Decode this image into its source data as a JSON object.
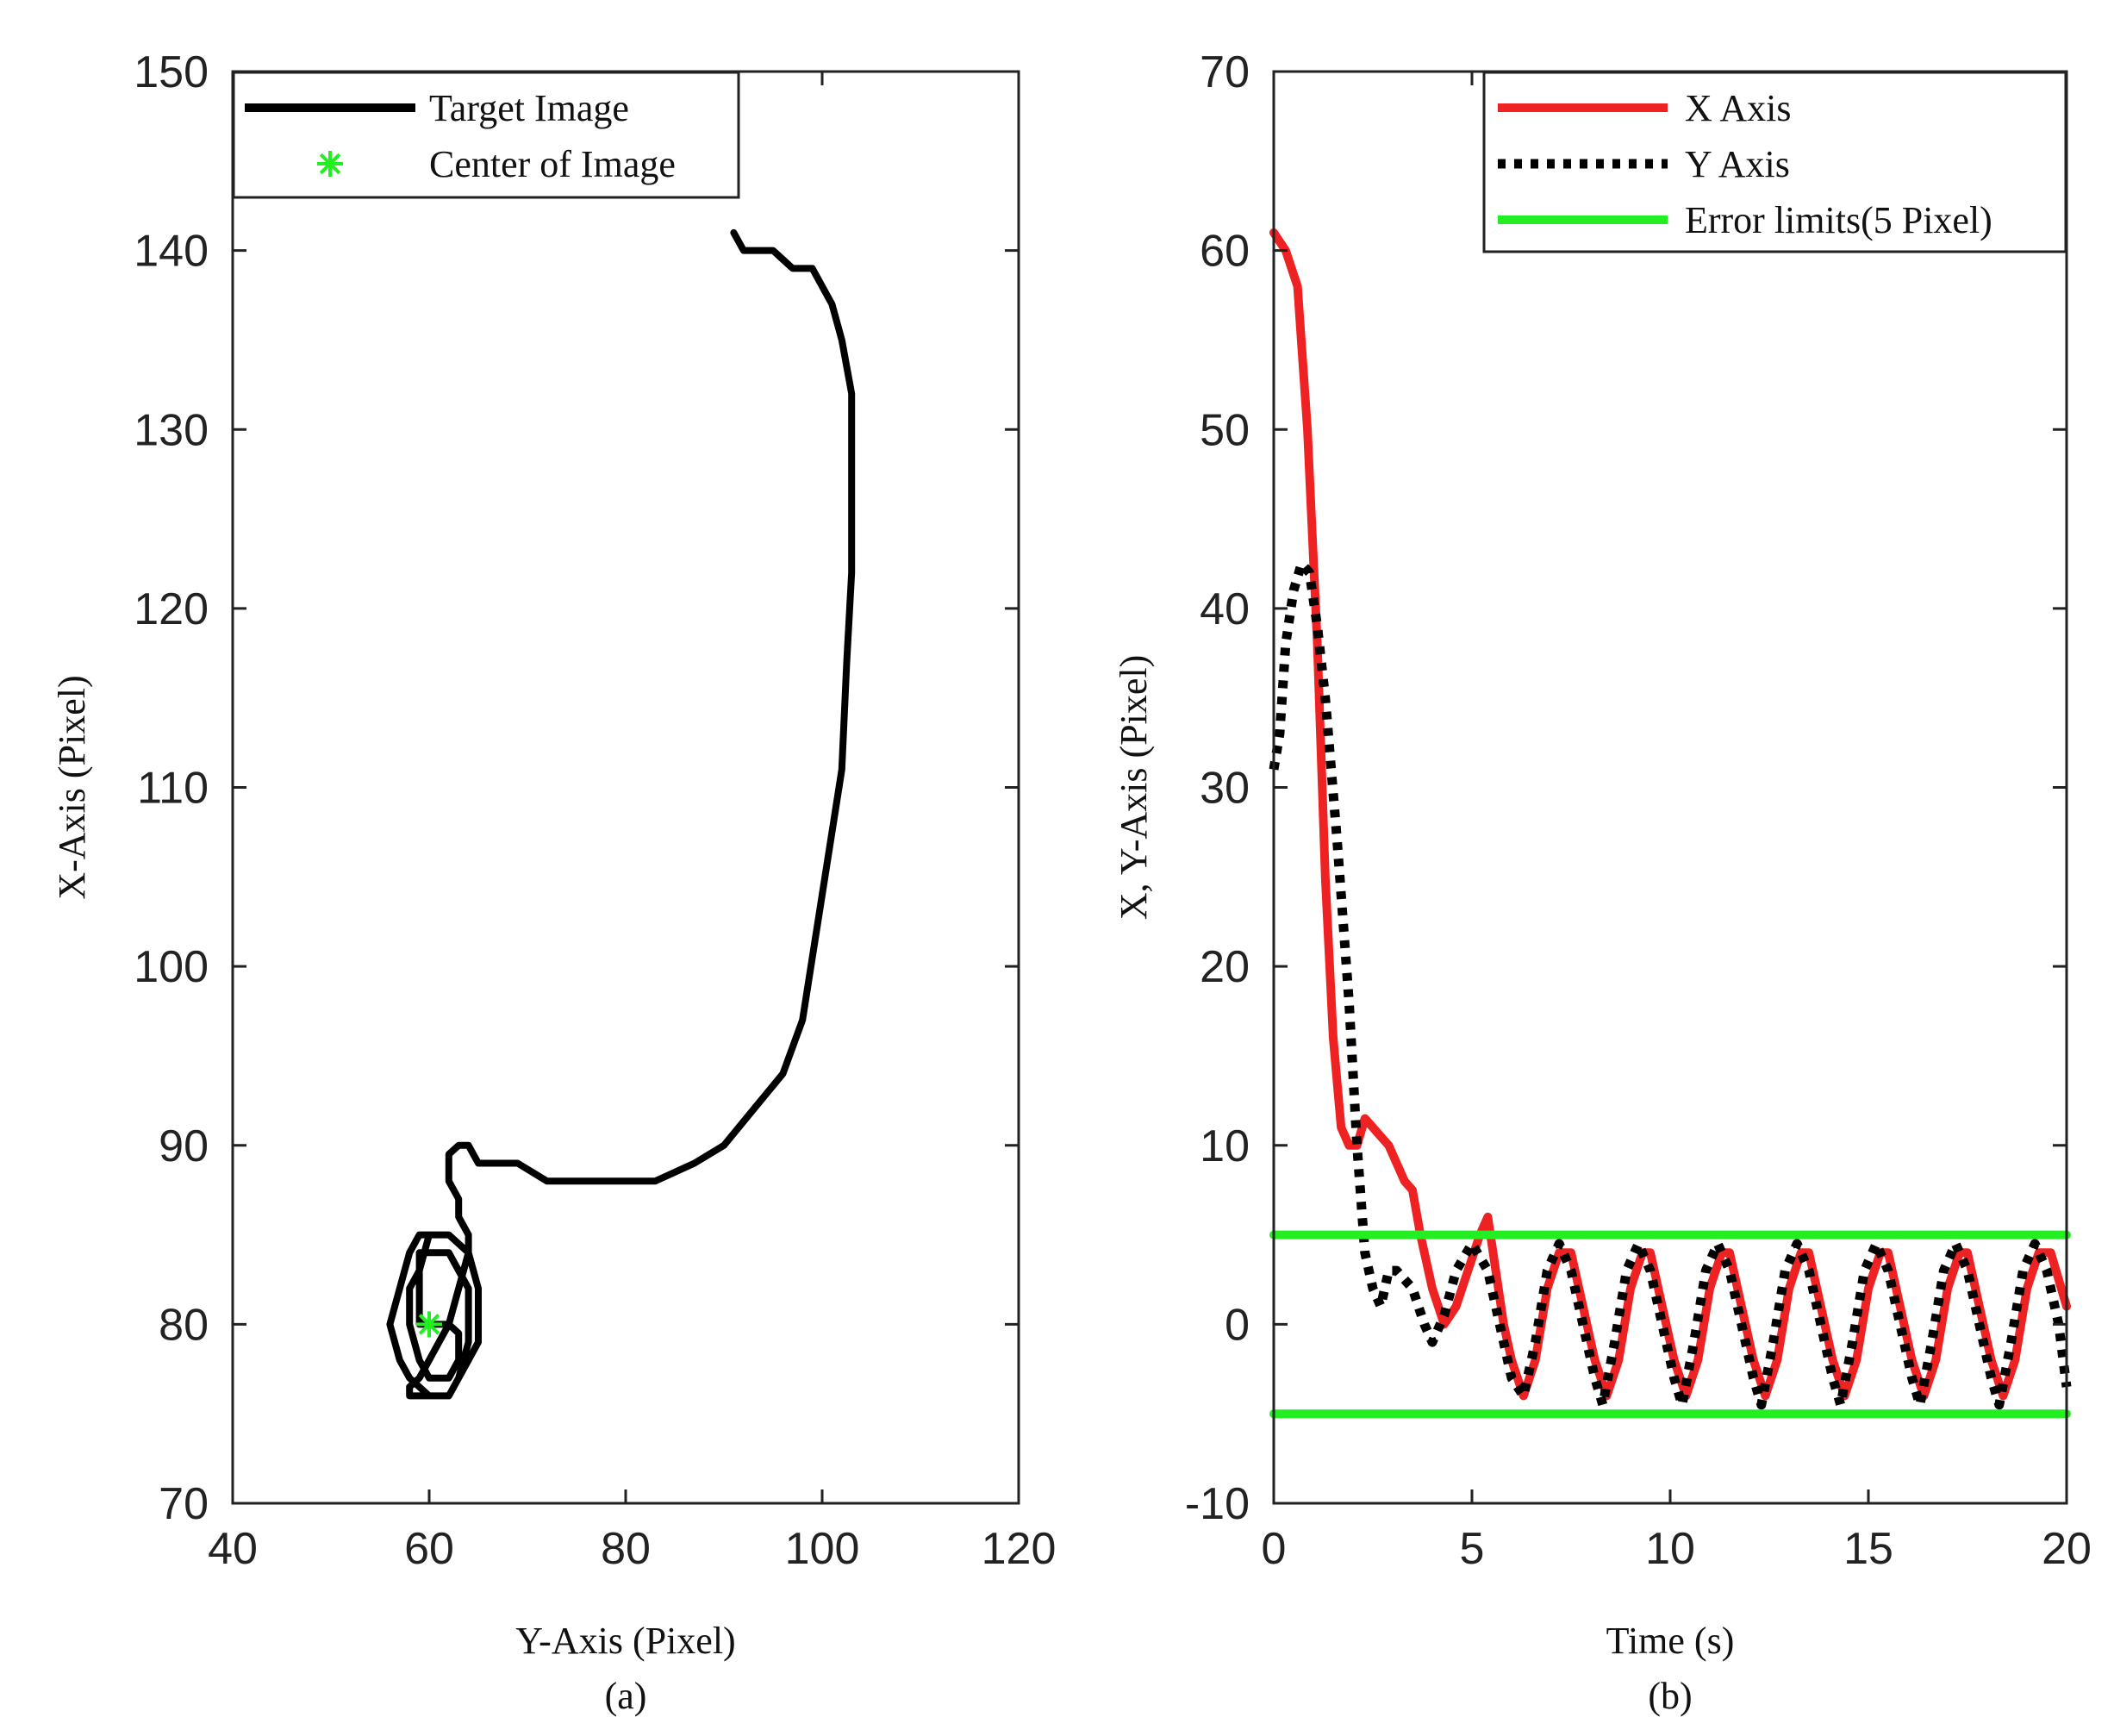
{
  "chart_data": [
    {
      "type": "line",
      "caption": "(a)",
      "xlabel": "Y-Axis (Pixel)",
      "ylabel": "X-Axis (Pixel)",
      "xlim": [
        40,
        120
      ],
      "ylim": [
        70,
        150
      ],
      "xticks": [
        40,
        60,
        80,
        100,
        120
      ],
      "yticks": [
        70,
        80,
        90,
        100,
        110,
        120,
        130,
        140,
        150
      ],
      "grid": false,
      "legend_position": "top-left",
      "series": [
        {
          "name": "Target Image",
          "color": "#000000",
          "style": "solid",
          "points": [
            [
              91,
              141
            ],
            [
              92,
              140
            ],
            [
              95,
              140
            ],
            [
              96,
              139.5
            ],
            [
              97,
              139
            ],
            [
              99,
              139
            ],
            [
              101,
              137
            ],
            [
              102,
              135
            ],
            [
              103,
              132
            ],
            [
              103,
              127
            ],
            [
              103,
              122
            ],
            [
              102.5,
              117
            ],
            [
              102,
              111
            ],
            [
              100,
              104
            ],
            [
              98,
              97
            ],
            [
              96,
              94
            ],
            [
              93,
              92
            ],
            [
              90,
              90
            ],
            [
              87,
              89
            ],
            [
              83,
              88
            ],
            [
              78,
              88
            ],
            [
              72,
              88
            ],
            [
              69,
              89
            ],
            [
              65,
              89
            ],
            [
              64,
              90
            ],
            [
              63,
              90
            ],
            [
              62,
              89.5
            ],
            [
              62,
              88.5
            ],
            [
              62,
              88
            ],
            [
              63,
              87
            ],
            [
              63,
              86.5
            ],
            [
              63,
              86
            ],
            [
              64,
              85
            ],
            [
              64,
              84
            ],
            [
              63,
              82
            ],
            [
              62,
              80
            ],
            [
              61,
              79
            ],
            [
              60,
              78
            ],
            [
              59,
              77
            ],
            [
              58,
              76.5
            ],
            [
              58,
              76
            ],
            [
              60,
              76
            ],
            [
              62,
              76
            ],
            [
              63,
              77
            ],
            [
              64,
              78
            ],
            [
              65,
              79
            ],
            [
              65,
              80
            ],
            [
              65,
              82
            ],
            [
              64,
              84
            ],
            [
              62,
              85
            ],
            [
              59,
              85
            ],
            [
              58,
              84
            ],
            [
              57,
              82
            ],
            [
              56,
              80
            ],
            [
              57,
              78
            ],
            [
              58,
              77
            ],
            [
              60,
              76
            ],
            [
              62,
              76
            ],
            [
              63,
              77
            ],
            [
              64,
              79
            ],
            [
              64,
              81
            ],
            [
              64,
              82
            ],
            [
              63,
              83
            ],
            [
              62,
              84
            ],
            [
              60,
              84
            ],
            [
              59,
              84
            ],
            [
              59,
              83
            ],
            [
              58,
              82
            ],
            [
              58,
              80
            ],
            [
              59,
              78
            ],
            [
              60,
              77
            ],
            [
              62,
              77
            ],
            [
              63,
              78
            ],
            [
              63,
              79.5
            ],
            [
              62,
              80
            ],
            [
              61,
              80
            ],
            [
              60,
              80
            ],
            [
              59,
              80
            ],
            [
              59,
              81
            ],
            [
              59,
              83
            ],
            [
              60,
              85
            ],
            [
              61,
              85
            ]
          ]
        },
        {
          "name": "Center of Image",
          "color": "#22ee22",
          "style": "marker-asterisk",
          "points": [
            [
              60,
              80
            ]
          ]
        }
      ]
    },
    {
      "type": "line",
      "caption": "(b)",
      "xlabel": "Time (s)",
      "ylabel": "X, Y-Axis (Pixel)",
      "xlim": [
        0,
        20
      ],
      "ylim": [
        -10,
        70
      ],
      "xticks": [
        0,
        5,
        10,
        15,
        20
      ],
      "yticks": [
        -10,
        0,
        10,
        20,
        30,
        40,
        50,
        60,
        70
      ],
      "grid": false,
      "legend_position": "top-right",
      "series": [
        {
          "name": "X Axis",
          "color": "#ee2222",
          "style": "solid",
          "points": [
            [
              0,
              61
            ],
            [
              0.3,
              60
            ],
            [
              0.6,
              58
            ],
            [
              0.85,
              50
            ],
            [
              1.1,
              38
            ],
            [
              1.3,
              25
            ],
            [
              1.5,
              16
            ],
            [
              1.7,
              11
            ],
            [
              1.9,
              10
            ],
            [
              2.1,
              10
            ],
            [
              2.3,
              11.5
            ],
            [
              2.5,
              11
            ],
            [
              2.7,
              10.5
            ],
            [
              2.9,
              10
            ],
            [
              3.1,
              9
            ],
            [
              3.3,
              8
            ],
            [
              3.5,
              7.5
            ],
            [
              3.7,
              5
            ],
            [
              4,
              2
            ],
            [
              4.3,
              0
            ],
            [
              4.6,
              1
            ],
            [
              4.9,
              3
            ],
            [
              5.2,
              5
            ],
            [
              5.4,
              6
            ],
            [
              5.6,
              3
            ],
            [
              5.8,
              0
            ],
            [
              6,
              -2
            ],
            [
              6.3,
              -4
            ],
            [
              6.6,
              -2
            ],
            [
              6.9,
              2
            ],
            [
              7.2,
              4
            ],
            [
              7.5,
              4
            ],
            [
              7.8,
              1
            ],
            [
              8.1,
              -2
            ],
            [
              8.4,
              -4
            ],
            [
              8.7,
              -2
            ],
            [
              9,
              2
            ],
            [
              9.3,
              4
            ],
            [
              9.5,
              4
            ],
            [
              9.8,
              1
            ],
            [
              10.1,
              -2
            ],
            [
              10.4,
              -4
            ],
            [
              10.7,
              -2
            ],
            [
              11,
              2
            ],
            [
              11.3,
              4
            ],
            [
              11.5,
              4
            ],
            [
              11.8,
              1
            ],
            [
              12.1,
              -2
            ],
            [
              12.4,
              -4
            ],
            [
              12.7,
              -2
            ],
            [
              13,
              2
            ],
            [
              13.3,
              4
            ],
            [
              13.5,
              4
            ],
            [
              13.8,
              1
            ],
            [
              14.1,
              -2
            ],
            [
              14.4,
              -4
            ],
            [
              14.7,
              -2
            ],
            [
              15,
              2
            ],
            [
              15.3,
              4
            ],
            [
              15.5,
              4
            ],
            [
              15.8,
              1
            ],
            [
              16.1,
              -2
            ],
            [
              16.4,
              -4
            ],
            [
              16.7,
              -2
            ],
            [
              17,
              2
            ],
            [
              17.3,
              4
            ],
            [
              17.5,
              4
            ],
            [
              17.8,
              1
            ],
            [
              18.1,
              -2
            ],
            [
              18.4,
              -4
            ],
            [
              18.7,
              -2
            ],
            [
              19,
              2
            ],
            [
              19.3,
              4
            ],
            [
              19.6,
              4
            ],
            [
              20,
              1
            ]
          ]
        },
        {
          "name": "Y Axis",
          "color": "#000000",
          "style": "dotted",
          "points": [
            [
              0,
              31
            ],
            [
              0.15,
              33
            ],
            [
              0.3,
              38
            ],
            [
              0.5,
              41
            ],
            [
              0.7,
              42.5
            ],
            [
              0.9,
              42
            ],
            [
              1.1,
              39
            ],
            [
              1.3,
              35
            ],
            [
              1.6,
              27
            ],
            [
              1.9,
              18
            ],
            [
              2.1,
              10
            ],
            [
              2.3,
              4
            ],
            [
              2.5,
              2
            ],
            [
              2.7,
              1
            ],
            [
              2.9,
              3
            ],
            [
              3.1,
              3
            ],
            [
              3.3,
              2.5
            ],
            [
              3.5,
              2
            ],
            [
              3.8,
              0
            ],
            [
              4,
              -1
            ],
            [
              4.3,
              0.5
            ],
            [
              4.6,
              3
            ],
            [
              5,
              4.5
            ],
            [
              5.4,
              3
            ],
            [
              5.7,
              0
            ],
            [
              6,
              -3
            ],
            [
              6.3,
              -4
            ],
            [
              6.6,
              -1
            ],
            [
              6.9,
              3
            ],
            [
              7.2,
              4.5
            ],
            [
              7.5,
              3
            ],
            [
              7.8,
              0
            ],
            [
              8.1,
              -3
            ],
            [
              8.3,
              -4.5
            ],
            [
              8.6,
              -1
            ],
            [
              8.9,
              3
            ],
            [
              9.2,
              4.5
            ],
            [
              9.5,
              3
            ],
            [
              9.8,
              0
            ],
            [
              10.1,
              -3
            ],
            [
              10.3,
              -4.5
            ],
            [
              10.6,
              -1
            ],
            [
              10.9,
              3
            ],
            [
              11.2,
              4.5
            ],
            [
              11.5,
              3
            ],
            [
              11.8,
              0
            ],
            [
              12.1,
              -3
            ],
            [
              12.3,
              -4.5
            ],
            [
              12.6,
              -1
            ],
            [
              12.9,
              3
            ],
            [
              13.2,
              4.5
            ],
            [
              13.5,
              3
            ],
            [
              13.8,
              0
            ],
            [
              14.1,
              -3
            ],
            [
              14.3,
              -4.5
            ],
            [
              14.6,
              -1
            ],
            [
              14.9,
              3
            ],
            [
              15.2,
              4.5
            ],
            [
              15.5,
              3
            ],
            [
              15.8,
              0
            ],
            [
              16.1,
              -3
            ],
            [
              16.3,
              -4.5
            ],
            [
              16.6,
              -1
            ],
            [
              16.9,
              3
            ],
            [
              17.2,
              4.5
            ],
            [
              17.5,
              3
            ],
            [
              17.8,
              0
            ],
            [
              18.1,
              -3
            ],
            [
              18.3,
              -4.5
            ],
            [
              18.6,
              -1
            ],
            [
              18.9,
              3
            ],
            [
              19.2,
              4.5
            ],
            [
              19.5,
              3
            ],
            [
              19.8,
              0
            ],
            [
              20,
              -3.5
            ]
          ]
        },
        {
          "name": "Error limits(5 Pixel)",
          "color": "#22ee22",
          "style": "solid",
          "points": [
            [
              0,
              5
            ],
            [
              20,
              5
            ]
          ],
          "points_lower": [
            [
              0,
              -5
            ],
            [
              20,
              -5
            ]
          ]
        }
      ]
    }
  ]
}
